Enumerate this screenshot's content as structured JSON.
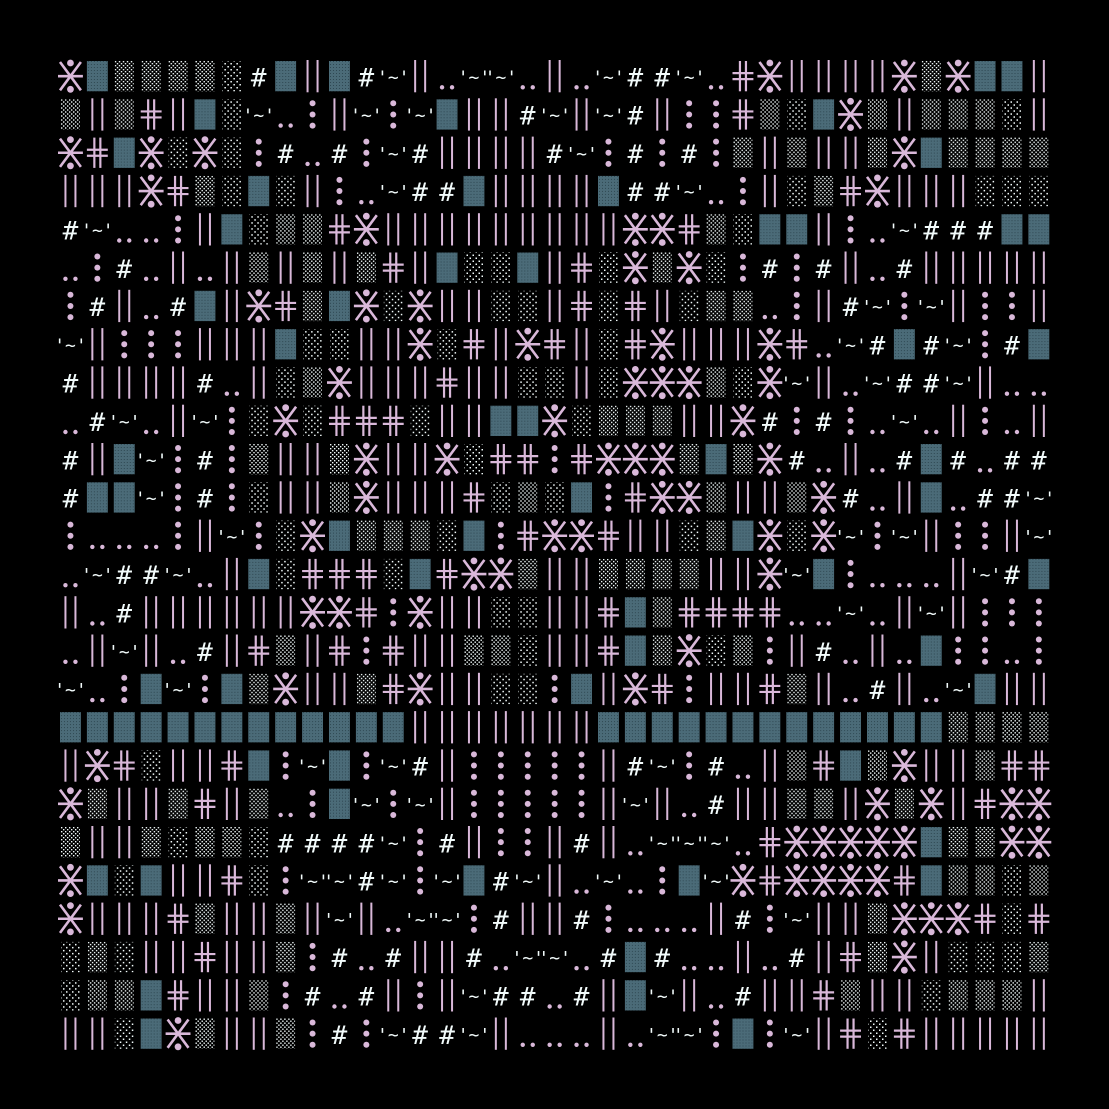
{
  "colors": {
    "background": "#000000",
    "pink": "#d9b8d9",
    "teal": "#4b6b78",
    "white": "#f2fbfb"
  },
  "glyphs": {
    "#": "#",
    "~": "'~'"
  },
  "grid": [
    "XTDDDDS#T|T#~|.~~.|.~##~.PX||||XDXTT|",
    "D|DP|TS~.:|~:~T||#~|~#|::PDSTXD|DDDS|",
    "XPTXSXS:#.#:~#||||#~:#:#:D|D||DXTDDDD",
    "|||XPDSTS|:.~##T||||T##~.:|SDPX|||SSS",
    "#~..:|TSDDPX|||||||||XXPDSTT|:.~###TT",
    ".:#.|.|D|D|DP|TSST|PSXDXS:#:#|.#|||||",
    ":#|.#T|XPDTXSX||SS|PSP|SDD.:|#~:~|::|",
    "~|:::|||TSS||XSP|XP|SPX|||XP.~#T#~:#T",
    "#||||#.|SDX|||P||SS|SXXXDSX~|.~##~|..",
    ".#~.|~:SXSPPPS||TTXSDDD||X#:#:.~.|:.|",
    "#|T~:#:D||DX||XSPP:PXXXDTDX#.|.#T#.##",
    "#TT~:#:S||DX|||PSDST:PXXD||DX#.|T.##~",
    ":...:|~:SXTDDDST:PXXP||SDTXSX~:~|::|~",
    ".~##~.|TSPPPSTPXXD||DDDD||X~T:...|~#T",
    "|.#||||||XXP:X||SS||PTDPPPP..~.|~|:::",
    ".|~|.#|PD|P:P||DDS||PTDXSD:|#.|.T::.:",
    "~.:T~:TDX||DPX||SS:T|XP:||PD|.#|.~T||",
    "TTTTTTTTTTTTT|||||||TTTTTTTTTTTTTDDDD",
    "|XPS||PT:~T:~#|:::::|#~:#.|DPTDX||DPP",
    "XD||DP|D.:T~:~|:::::|~|.#||DD|XDX|PXX",
    "D||DSDDS####~:#|::|#|.~~~.PXXXXXTDDXX",
    "XTST||PS:~~#~:~T#~|.~.:T~XPXXXXPTDDSD",
    "X|||PD||D|~|.~~:#||#:...|#:~||DXXXPSP",
    "SDS||P||D:#.#||#.~~.#T#..|.#|PDX|SSSD",
    "SDDTP||D:#.#|:|~##.#|T~|.#||PD||SDDD|",
    "||STXD||D:#:~##~|...|.~~:T:~|PSP|||||",
    "SSDDTXD|..#|||#:..|~#T#.|~XSXT|SS|||X"
  ]
}
